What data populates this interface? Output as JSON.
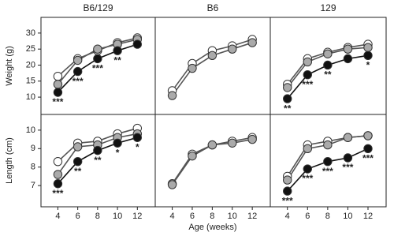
{
  "chart_data": [
    {
      "type": "line",
      "title": "B6/129",
      "ylabel": "Weight (g)",
      "x": [
        4,
        6,
        8,
        10,
        12
      ],
      "xlim": [
        2.3,
        13.8
      ],
      "ylim": [
        4.6,
        34.9
      ],
      "yticks": [
        10,
        15,
        20,
        25,
        30
      ],
      "series": [
        {
          "color": "#ffffff",
          "values": [
            16.5,
            22,
            24.5,
            27,
            28.5
          ]
        },
        {
          "color": "#aaaaaa",
          "values": [
            14,
            21.5,
            25,
            26.5,
            28
          ]
        },
        {
          "color": "#111111",
          "values": [
            11.5,
            18,
            22,
            24.5,
            26.5
          ]
        }
      ],
      "annotations": [
        "***",
        "***",
        "***",
        "**",
        null
      ]
    },
    {
      "type": "line",
      "title": "B6",
      "x": [
        4,
        6,
        8,
        10,
        12
      ],
      "xlim": [
        2.3,
        13.8
      ],
      "ylim": [
        4.6,
        34.9
      ],
      "series": [
        {
          "color": "#ffffff",
          "values": [
            12,
            20.5,
            24.5,
            26,
            28
          ]
        },
        {
          "color": "#aaaaaa",
          "values": [
            10.5,
            19,
            23,
            25,
            27
          ]
        }
      ]
    },
    {
      "type": "line",
      "title": "129",
      "x": [
        4,
        6,
        8,
        10,
        12
      ],
      "xlim": [
        2.3,
        13.8
      ],
      "ylim": [
        4.6,
        34.9
      ],
      "series": [
        {
          "color": "#ffffff",
          "values": [
            14,
            22,
            24,
            25.5,
            26.5
          ]
        },
        {
          "color": "#aaaaaa",
          "values": [
            13,
            21,
            23.5,
            25,
            25.5
          ]
        },
        {
          "color": "#111111",
          "values": [
            9.5,
            17,
            20,
            22,
            23
          ]
        }
      ],
      "annotations": [
        "**",
        "***",
        "**",
        null,
        "*"
      ]
    },
    {
      "type": "line",
      "ylabel": "Length (cm)",
      "x": [
        4,
        6,
        8,
        10,
        12
      ],
      "xlim": [
        2.3,
        13.8
      ],
      "ylim": [
        5.85,
        10.85
      ],
      "yticks": [
        7,
        8,
        9,
        10
      ],
      "xticks": [
        4,
        6,
        8,
        10,
        12
      ],
      "series": [
        {
          "color": "#ffffff",
          "values": [
            8.3,
            9.3,
            9.4,
            9.8,
            10.1
          ]
        },
        {
          "color": "#aaaaaa",
          "values": [
            7.6,
            9.1,
            9.2,
            9.6,
            9.8
          ]
        },
        {
          "color": "#111111",
          "values": [
            7.1,
            8.3,
            8.9,
            9.3,
            9.6
          ]
        }
      ],
      "annotations": [
        "***",
        "**",
        "**",
        "*",
        "*"
      ]
    },
    {
      "type": "line",
      "xlabel": "Age (weeks)",
      "x": [
        4,
        6,
        8,
        10,
        12
      ],
      "xlim": [
        2.3,
        13.8
      ],
      "ylim": [
        5.85,
        10.85
      ],
      "xticks": [
        4,
        6,
        8,
        10,
        12
      ],
      "series": [
        {
          "color": "#ffffff",
          "values": [
            7.1,
            8.7,
            9.2,
            9.4,
            9.6
          ]
        },
        {
          "color": "#aaaaaa",
          "values": [
            7.05,
            8.6,
            9.2,
            9.3,
            9.5
          ]
        }
      ]
    },
    {
      "type": "line",
      "x": [
        4,
        6,
        8,
        10,
        12
      ],
      "xlim": [
        2.3,
        13.8
      ],
      "ylim": [
        5.85,
        10.85
      ],
      "xticks": [
        4,
        6,
        8,
        10,
        12
      ],
      "series": [
        {
          "color": "#ffffff",
          "values": [
            7.5,
            9.2,
            9.4,
            9.6,
            9.7
          ]
        },
        {
          "color": "#aaaaaa",
          "values": [
            7.3,
            9.0,
            9.2,
            9.6,
            9.7
          ]
        },
        {
          "color": "#111111",
          "values": [
            6.7,
            7.9,
            8.3,
            8.5,
            9.0
          ]
        }
      ],
      "annotations": [
        "***",
        "***",
        "***",
        "***",
        "***"
      ]
    }
  ]
}
